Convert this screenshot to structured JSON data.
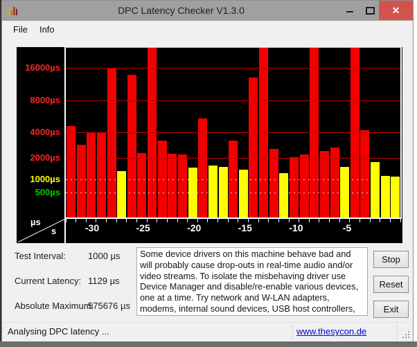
{
  "window": {
    "title": "DPC Latency Checker V1.3.0",
    "controls": [
      {
        "name": "minimize",
        "glyph": "–"
      },
      {
        "name": "maximize",
        "glyph": "□"
      },
      {
        "name": "close",
        "glyph": "✕"
      }
    ],
    "close_button_color": "#d4524e",
    "app_icon": "bar-chart-icon"
  },
  "menu": {
    "items": [
      "File",
      "Info"
    ]
  },
  "chart_data": {
    "type": "bar",
    "title": "DPC latency history, one bar per second",
    "y_unit": "µs",
    "x_unit": "s",
    "yscale": "log-like",
    "grid": true,
    "background": "#000000",
    "bar_colors": {
      "red": "#f20000",
      "yellow": "#ffff00"
    },
    "color_rule": {
      "yellow_below_us": 2000
    },
    "y_axis": [
      {
        "value": 16000,
        "label": "16000µs",
        "label_color": "#ff2222",
        "line": "red"
      },
      {
        "value": 8000,
        "label": "8000µs",
        "label_color": "#ff2222",
        "line": "red"
      },
      {
        "value": 4000,
        "label": "4000µs",
        "label_color": "#ff2222",
        "line": "red"
      },
      {
        "value": 2000,
        "label": "2000µs",
        "label_color": "#ff2222",
        "line": "red"
      },
      {
        "value": 1000,
        "label": "1000µs",
        "label_color": "#ffff00",
        "line": "dotted"
      },
      {
        "value": 500,
        "label": "500µs",
        "label_color": "#00cc00",
        "line": "dotted"
      }
    ],
    "x_tick_labels": [
      "-30",
      "-25",
      "-20",
      "-15",
      "-10",
      "-5"
    ],
    "x_tick_seconds": [
      -30,
      -25,
      -20,
      -15,
      -10,
      -5
    ],
    "values_us": [
      4600,
      2850,
      3950,
      3950,
      15800,
      1300,
      13800,
      2300,
      30000,
      3200,
      2250,
      2200,
      1450,
      5400,
      1550,
      1500,
      3200,
      1370,
      13000,
      30000,
      2550,
      1220,
      2050,
      2200,
      30000,
      2400,
      2650,
      1480,
      30000,
      4200,
      1750,
      1130,
      1100
    ],
    "clip_top_us": 24000,
    "corner_labels": {
      "above_diagonal": "µs",
      "below_diagonal": "s"
    }
  },
  "stats": {
    "rows": [
      {
        "label": "Test Interval:",
        "value": "1000 µs"
      },
      {
        "label": "Current Latency:",
        "value": "1129 µs"
      },
      {
        "label": "Absolute Maximum:",
        "value": "575676 µs"
      }
    ]
  },
  "info_text": "Some device drivers on this machine behave bad and will probably cause drop-outs in real-time audio and/or video streams. To isolate the misbehaving driver use Device Manager and disable/re-enable various devices, one at a time. Try network and W-LAN adapters, modems, internal sound devices, USB host controllers, etc.",
  "buttons": [
    "Stop",
    "Reset",
    "Exit"
  ],
  "statusbar": {
    "status": "Analysing DPC latency ...",
    "link": "www.thesycon.de",
    "link_color": "#0000cc"
  }
}
